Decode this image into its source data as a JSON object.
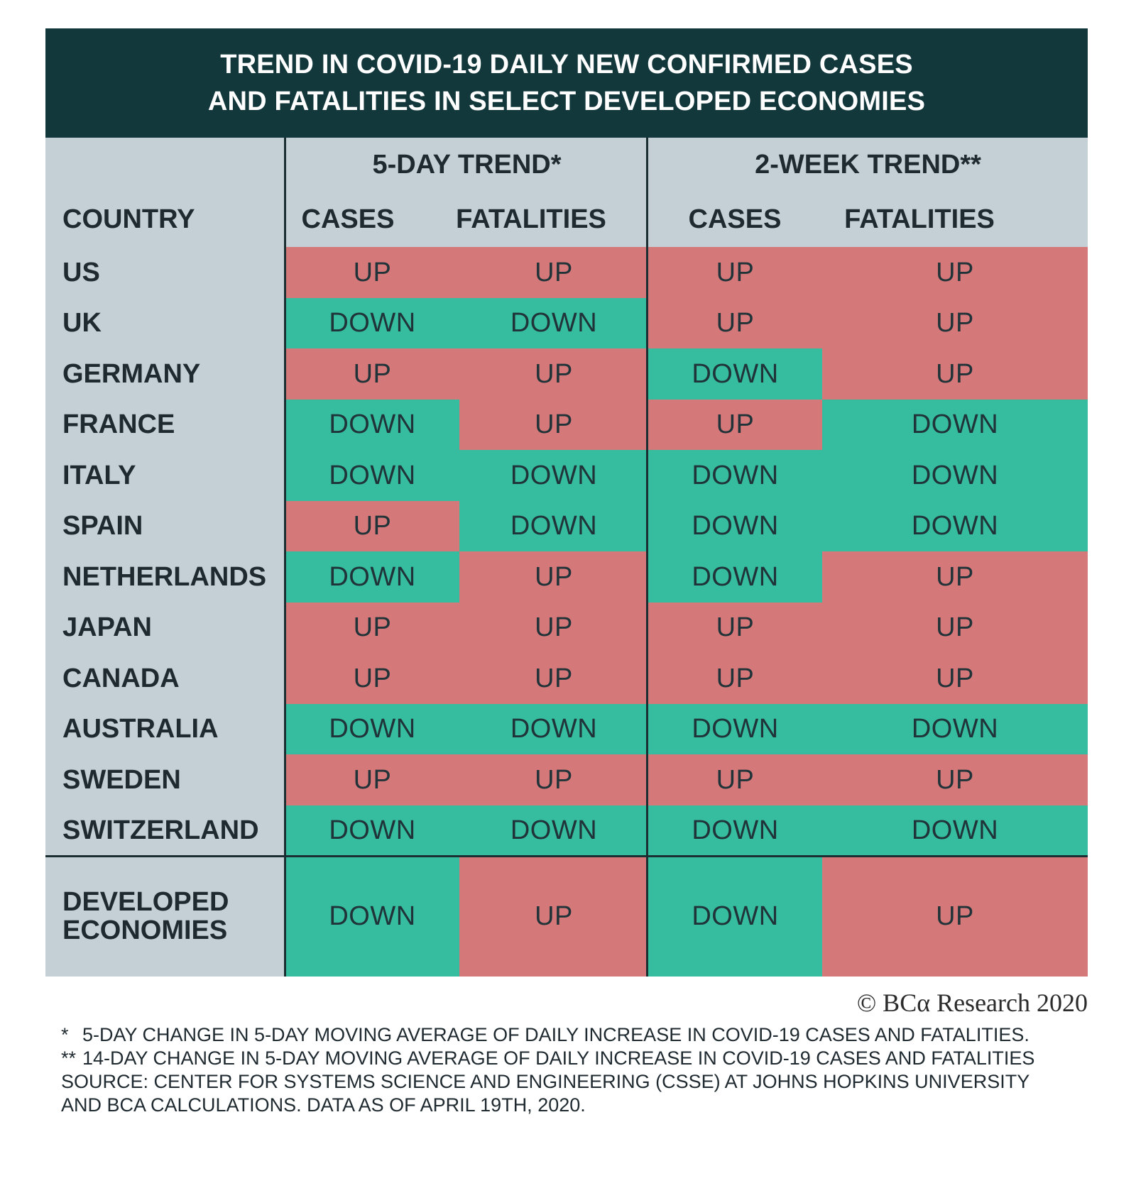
{
  "title_lines": [
    "TREND IN COVID-19 DAILY NEW CONFIRMED CASES",
    "AND FATALITIES IN SELECT DEVELOPED ECONOMIES"
  ],
  "colors": {
    "up": "#d5787a",
    "down": "#36bd9f",
    "header_bg": "#12383c",
    "table_bg": "#c4cfd6"
  },
  "chart_data": {
    "type": "table",
    "group_headers": [
      "5-DAY TREND*",
      "2-WEEK TREND**"
    ],
    "country_header": "COUNTRY",
    "columns": [
      "CASES",
      "FATALITIES",
      "CASES",
      "FATALITIES"
    ],
    "rows": [
      {
        "country": "US",
        "values": [
          "UP",
          "UP",
          "UP",
          "UP"
        ]
      },
      {
        "country": "UK",
        "values": [
          "DOWN",
          "DOWN",
          "UP",
          "UP"
        ]
      },
      {
        "country": "GERMANY",
        "values": [
          "UP",
          "UP",
          "DOWN",
          "UP"
        ]
      },
      {
        "country": "FRANCE",
        "values": [
          "DOWN",
          "UP",
          "UP",
          "DOWN"
        ]
      },
      {
        "country": "ITALY",
        "values": [
          "DOWN",
          "DOWN",
          "DOWN",
          "DOWN"
        ]
      },
      {
        "country": "SPAIN",
        "values": [
          "UP",
          "DOWN",
          "DOWN",
          "DOWN"
        ]
      },
      {
        "country": "NETHERLANDS",
        "values": [
          "DOWN",
          "UP",
          "DOWN",
          "UP"
        ]
      },
      {
        "country": "JAPAN",
        "values": [
          "UP",
          "UP",
          "UP",
          "UP"
        ]
      },
      {
        "country": "CANADA",
        "values": [
          "UP",
          "UP",
          "UP",
          "UP"
        ]
      },
      {
        "country": "AUSTRALIA",
        "values": [
          "DOWN",
          "DOWN",
          "DOWN",
          "DOWN"
        ]
      },
      {
        "country": "SWEDEN",
        "values": [
          "UP",
          "UP",
          "UP",
          "UP"
        ]
      },
      {
        "country": "SWITZERLAND",
        "values": [
          "DOWN",
          "DOWN",
          "DOWN",
          "DOWN"
        ]
      }
    ],
    "total_row": {
      "country_lines": [
        "DEVELOPED",
        "ECONOMIES"
      ],
      "values": [
        "DOWN",
        "UP",
        "DOWN",
        "UP"
      ]
    }
  },
  "copyright": "© BCα Research 2020",
  "notes": [
    {
      "mark": "*",
      "text": "5-DAY CHANGE IN 5-DAY MOVING AVERAGE OF DAILY INCREASE IN COVID-19 CASES AND FATALITIES."
    },
    {
      "mark": "**",
      "text": "14-DAY CHANGE IN 5-DAY MOVING AVERAGE OF DAILY INCREASE IN COVID-19 CASES AND FATALITIES"
    }
  ],
  "source": "SOURCE: CENTER FOR SYSTEMS SCIENCE AND ENGINEERING (CSSE) AT JOHNS HOPKINS UNIVERSITY AND BCA CALCULATIONS. DATA AS OF APRIL 19TH, 2020."
}
